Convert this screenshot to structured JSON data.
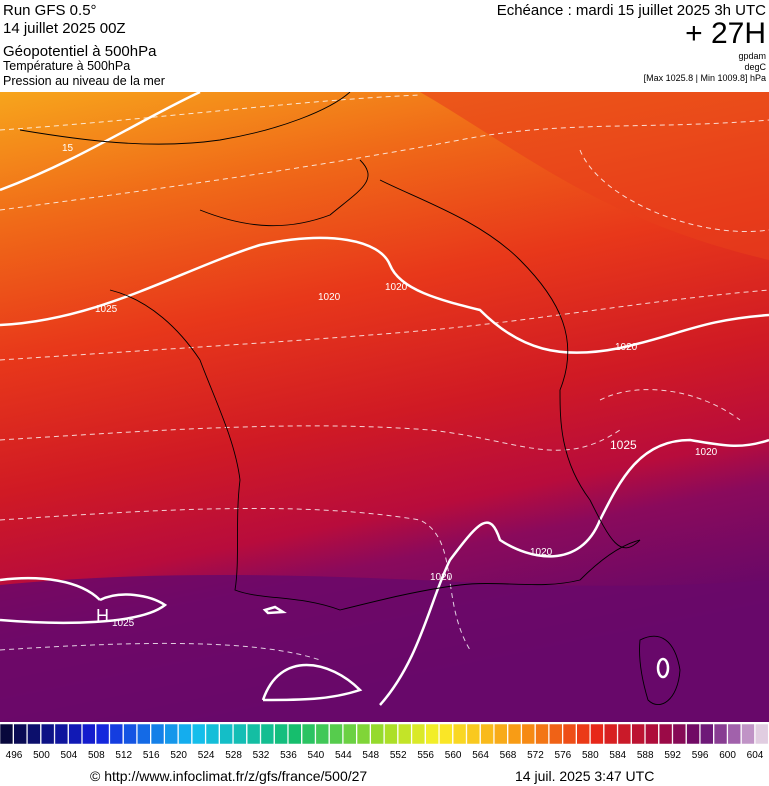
{
  "header": {
    "run": "Run GFS 0.5°",
    "run_date": "14 juillet 2025 00Z",
    "field_1": "Géopotentiel à 500hPa",
    "field_2": "Température à 500hPa",
    "field_3": "Pression au niveau de la mer",
    "valid": "Echéance : mardi 15 juillet 2025 3h UTC",
    "lead": "+ 27H",
    "unit_1": "gpdam",
    "unit_2": "degC",
    "minmax": "[Max 1025.8 | Min 1009.8] hPa"
  },
  "map": {
    "labels": [
      "15",
      "1020",
      "1025",
      "1020",
      "1025",
      "1020",
      "1020",
      "1020",
      "1020",
      "H",
      "1025"
    ]
  },
  "legend": {
    "ticks": [
      496,
      500,
      504,
      508,
      512,
      516,
      520,
      524,
      528,
      532,
      536,
      540,
      544,
      548,
      552,
      556,
      560,
      564,
      568,
      572,
      576,
      580,
      584,
      588,
      592,
      596,
      600,
      604
    ]
  },
  "footer": {
    "source": "© http://www.infoclimat.fr/z/gfs/france/500/27",
    "timestamp": "14 juil. 2025  3:47 UTC"
  }
}
